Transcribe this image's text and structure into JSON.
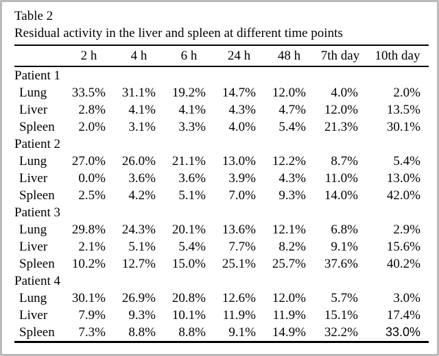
{
  "figure": {
    "title": "Table 2",
    "caption": "Residual activity in the liver and spleen at different time points"
  },
  "table": {
    "columns": [
      "2 h",
      "4 h",
      "6 h",
      "24 h",
      "48 h",
      "7th day",
      "10th day"
    ],
    "patients": [
      {
        "label": "Patient 1",
        "rows": [
          {
            "organ": "Lung",
            "values": [
              "33.5%",
              "31.1%",
              "19.2%",
              "14.7%",
              "12.0%",
              "4.0%",
              "2.0%"
            ]
          },
          {
            "organ": "Liver",
            "values": [
              "2.8%",
              "4.1%",
              "4.1%",
              "4.3%",
              "4.7%",
              "12.0%",
              "13.5%"
            ]
          },
          {
            "organ": "Spleen",
            "values": [
              "2.0%",
              "3.1%",
              "3.3%",
              "4.0%",
              "5.4%",
              "21.3%",
              "30.1%"
            ]
          }
        ]
      },
      {
        "label": "Patient 2",
        "rows": [
          {
            "organ": "Lung",
            "values": [
              "27.0%",
              "26.0%",
              "21.1%",
              "13.0%",
              "12.2%",
              "8.7%",
              "5.4%"
            ]
          },
          {
            "organ": "Liver",
            "values": [
              "0.0%",
              "3.6%",
              "3.6%",
              "3.9%",
              "4.3%",
              "11.0%",
              "13.0%"
            ]
          },
          {
            "organ": "Spleen",
            "values": [
              "2.5%",
              "4.2%",
              "5.1%",
              "7.0%",
              "9.3%",
              "14.0%",
              "42.0%"
            ]
          }
        ]
      },
      {
        "label": "Patient 3",
        "rows": [
          {
            "organ": "Lung",
            "values": [
              "29.8%",
              "24.3%",
              "20.1%",
              "13.6%",
              "12.1%",
              "6.8%",
              "2.9%"
            ]
          },
          {
            "organ": "Liver",
            "values": [
              "2.1%",
              "5.1%",
              "5.4%",
              "7.7%",
              "8.2%",
              "9.1%",
              "15.6%"
            ]
          },
          {
            "organ": "Spleen",
            "values": [
              "10.2%",
              "12.7%",
              "15.0%",
              "25.1%",
              "25.7%",
              "37.6%",
              "40.2%"
            ]
          }
        ]
      },
      {
        "label": "Patient 4",
        "rows": [
          {
            "organ": "Lung",
            "values": [
              "30.1%",
              "26.9%",
              "20.8%",
              "12.6%",
              "12.0%",
              "5.7%",
              "3.0%"
            ]
          },
          {
            "organ": "Liver",
            "values": [
              "7.9%",
              "9.3%",
              "10.1%",
              "11.9%",
              "11.9%",
              "15.1%",
              "17.4%"
            ]
          },
          {
            "organ": "Spleen",
            "values": [
              "7.3%",
              "8.8%",
              "8.8%",
              "9.1%",
              "14.9%",
              "32.2%",
              "33.0%"
            ]
          }
        ]
      }
    ]
  }
}
